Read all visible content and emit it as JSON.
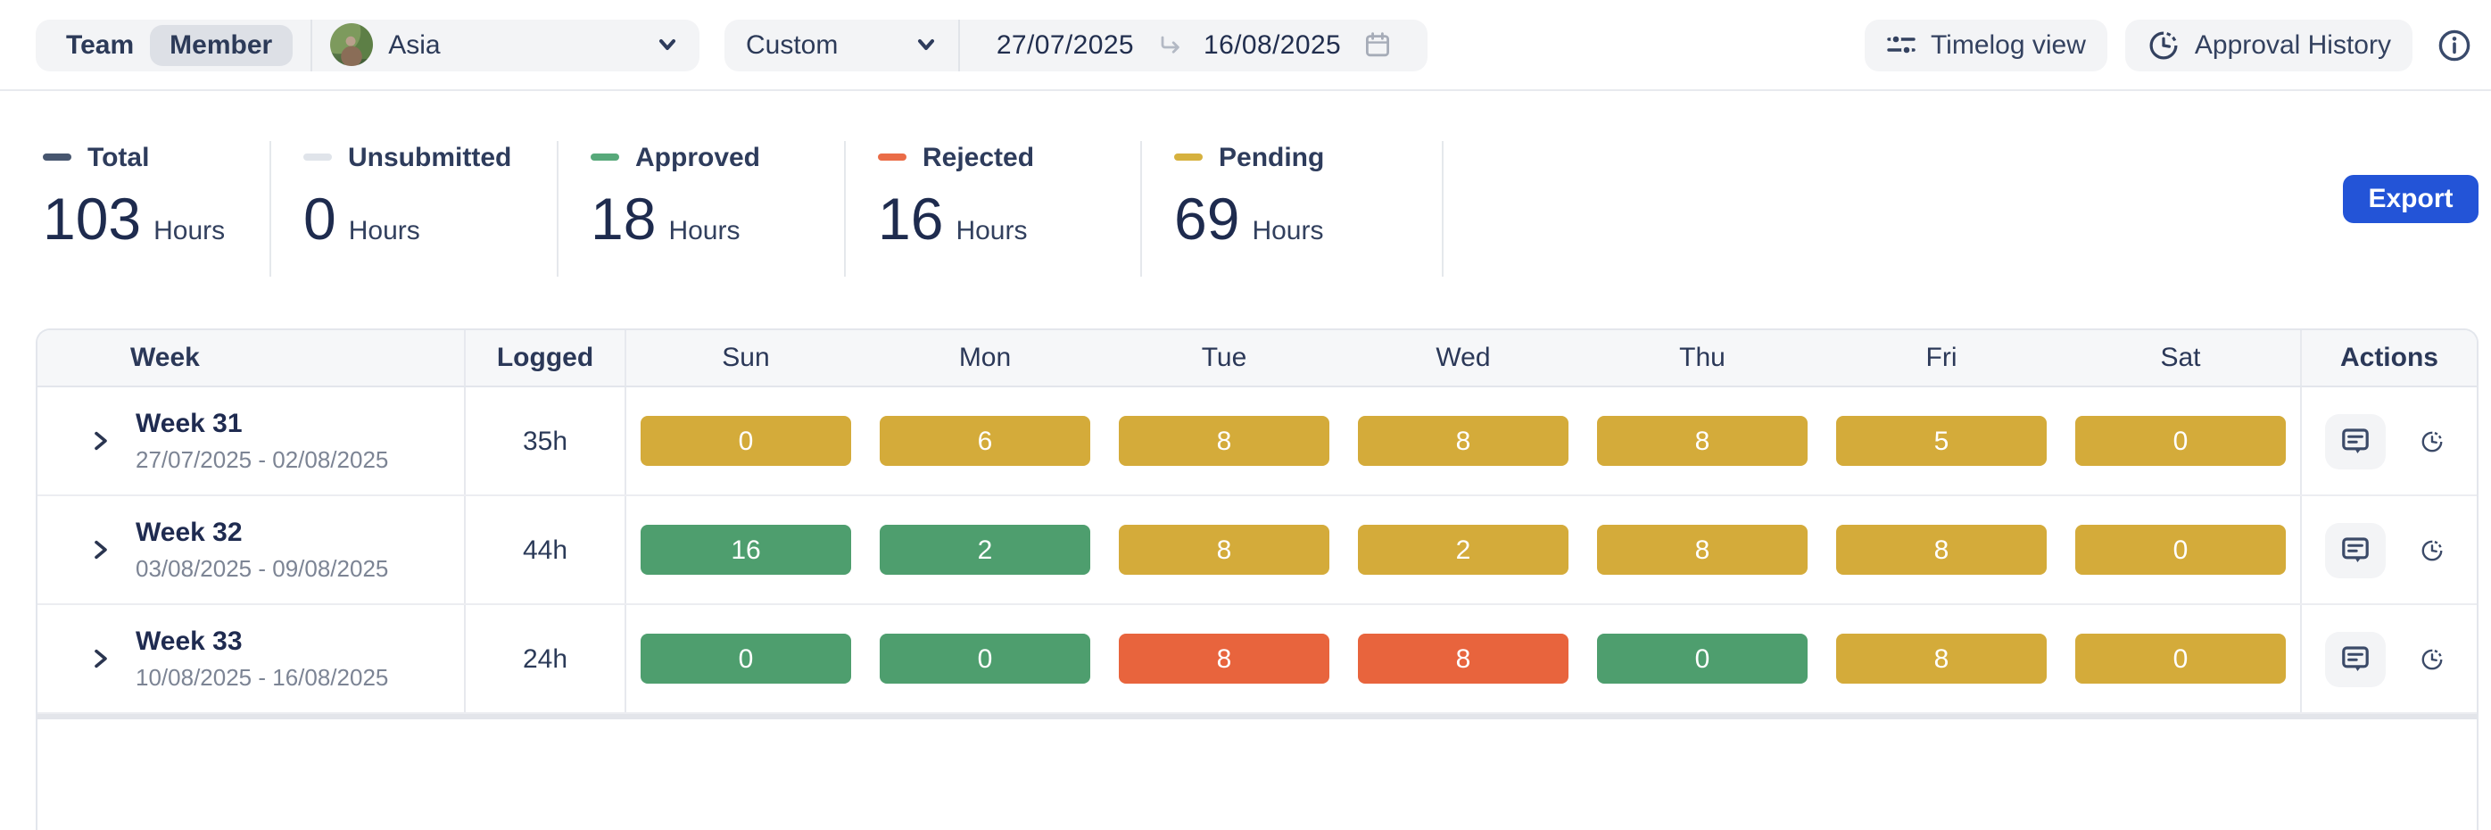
{
  "topbar": {
    "mode_toggle": {
      "options": [
        "Team",
        "Member"
      ],
      "selected": "Member"
    },
    "member_selector": {
      "value": "Asia"
    },
    "range_preset": {
      "value": "Custom"
    },
    "date_range": {
      "start": "27/07/2025",
      "end": "16/08/2025"
    },
    "timelog_view_label": "Timelog view",
    "approval_history_label": "Approval History"
  },
  "summary": {
    "stats": [
      {
        "label": "Total",
        "value": "103",
        "unit": "Hours",
        "color": "#47566f"
      },
      {
        "label": "Unsubmitted",
        "value": "0",
        "unit": "Hours",
        "color": "#e0e4ea"
      },
      {
        "label": "Approved",
        "value": "18",
        "unit": "Hours",
        "color": "#57a97a"
      },
      {
        "label": "Rejected",
        "value": "16",
        "unit": "Hours",
        "color": "#ea6c47"
      },
      {
        "label": "Pending",
        "value": "69",
        "unit": "Hours",
        "color": "#d6b13e"
      }
    ],
    "export_label": "Export",
    "export_color": "#2354d7"
  },
  "table": {
    "columns": [
      "Week",
      "Logged",
      "Sun",
      "Mon",
      "Tue",
      "Wed",
      "Thu",
      "Fri",
      "Sat",
      "Actions"
    ],
    "status_colors": {
      "pending": "#d4ab3a",
      "approved": "#4e9e6e",
      "rejected": "#e8643d"
    },
    "rows": [
      {
        "week": "Week 31",
        "range": "27/07/2025 - 02/08/2025",
        "logged": "35h",
        "days": [
          {
            "v": "0",
            "s": "pending"
          },
          {
            "v": "6",
            "s": "pending"
          },
          {
            "v": "8",
            "s": "pending"
          },
          {
            "v": "8",
            "s": "pending"
          },
          {
            "v": "8",
            "s": "pending"
          },
          {
            "v": "5",
            "s": "pending"
          },
          {
            "v": "0",
            "s": "pending"
          }
        ]
      },
      {
        "week": "Week 32",
        "range": "03/08/2025 - 09/08/2025",
        "logged": "44h",
        "days": [
          {
            "v": "16",
            "s": "approved"
          },
          {
            "v": "2",
            "s": "approved"
          },
          {
            "v": "8",
            "s": "pending"
          },
          {
            "v": "2",
            "s": "pending"
          },
          {
            "v": "8",
            "s": "pending"
          },
          {
            "v": "8",
            "s": "pending"
          },
          {
            "v": "0",
            "s": "pending"
          }
        ]
      },
      {
        "week": "Week 33",
        "range": "10/08/2025 - 16/08/2025",
        "logged": "24h",
        "days": [
          {
            "v": "0",
            "s": "approved"
          },
          {
            "v": "0",
            "s": "approved"
          },
          {
            "v": "8",
            "s": "rejected"
          },
          {
            "v": "8",
            "s": "rejected"
          },
          {
            "v": "0",
            "s": "approved"
          },
          {
            "v": "8",
            "s": "pending"
          },
          {
            "v": "0",
            "s": "pending"
          }
        ]
      }
    ]
  },
  "icons": [
    "chevron-down-icon",
    "arrow-right-icon",
    "calendar-icon",
    "sliders-icon",
    "history-clock-icon",
    "info-icon",
    "chevron-right-icon",
    "comment-icon"
  ]
}
